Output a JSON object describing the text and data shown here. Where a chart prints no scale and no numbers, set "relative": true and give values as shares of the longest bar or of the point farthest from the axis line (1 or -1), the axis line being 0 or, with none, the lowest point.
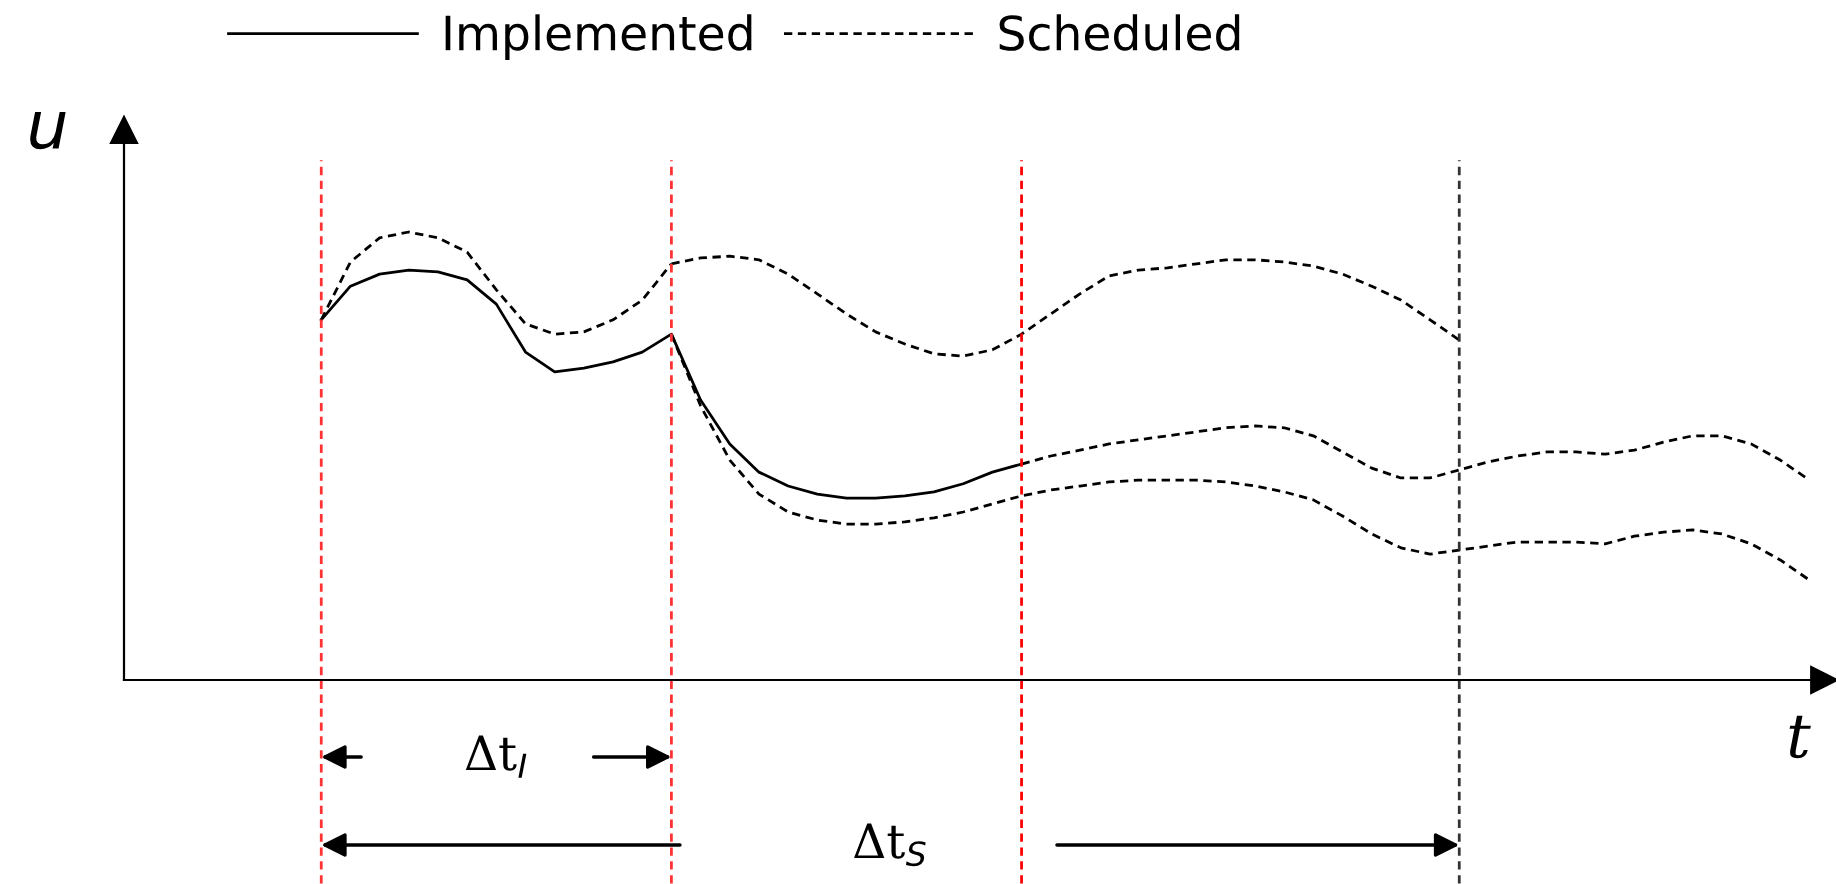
{
  "chart_data": {
    "type": "line",
    "relative": true,
    "xlabel": "t",
    "ylabel": "u",
    "legend": "top",
    "categories": [
      null,
      null,
      null,
      null,
      null,
      null,
      null,
      null,
      null,
      null,
      null,
      null,
      null,
      null,
      null,
      null,
      null,
      null,
      null,
      null,
      null,
      null,
      null,
      null,
      null,
      null,
      null,
      null,
      null,
      null,
      null,
      null,
      null,
      null,
      null,
      null,
      null,
      null,
      null,
      null,
      null,
      null,
      null,
      null,
      null,
      null,
      null,
      null,
      null,
      null,
      null,
      null
    ],
    "series": [
      {
        "name": "Implemented",
        "color": "#000000",
        "line_style": "solid",
        "values": [
          0.804,
          0.879,
          0.906,
          0.915,
          0.911,
          0.893,
          0.839,
          0.732,
          0.688,
          0.696,
          0.71,
          0.732,
          0.772,
          0.625,
          0.527,
          0.464,
          0.433,
          0.415,
          0.406,
          0.406,
          0.411,
          0.42,
          0.438,
          0.464,
          0.482,
          null,
          null,
          null,
          null,
          null,
          null,
          null,
          null,
          null,
          null,
          null,
          null,
          null,
          null,
          null,
          null,
          null,
          null,
          null,
          null,
          null,
          null,
          null,
          null,
          null,
          null,
          null
        ]
      },
      {
        "name": "Scheduled",
        "color": "#000000",
        "line_style": "dashed",
        "values": [
          0.804,
          0.933,
          0.987,
          1,
          0.987,
          0.955,
          0.871,
          0.795,
          0.772,
          0.777,
          0.804,
          0.848,
          0.929,
          null,
          null,
          null,
          null,
          null,
          null,
          null,
          null,
          null,
          null,
          null,
          null,
          null,
          null,
          null,
          null,
          null,
          null,
          null,
          null,
          null,
          null,
          null,
          null,
          null,
          null,
          null,
          null,
          null,
          null,
          null,
          null,
          null,
          null,
          null,
          null,
          null,
          null,
          null
        ]
      },
      {
        "color": "#000000",
        "line_style": "dashed",
        "values": [
          null,
          null,
          null,
          null,
          null,
          null,
          null,
          null,
          null,
          null,
          null,
          null,
          0.929,
          0.942,
          0.946,
          0.938,
          0.906,
          0.862,
          0.817,
          0.777,
          0.75,
          0.728,
          0.723,
          0.737,
          0.772,
          0.817,
          0.862,
          0.902,
          0.915,
          0.92,
          0.929,
          0.938,
          0.938,
          0.933,
          0.924,
          0.906,
          0.879,
          0.848,
          0.804,
          0.759,
          null,
          null,
          null,
          null,
          null,
          null,
          null,
          null,
          null,
          null,
          null,
          null
        ]
      },
      {
        "color": "#000000",
        "line_style": "dashed",
        "values": [
          null,
          null,
          null,
          null,
          null,
          null,
          null,
          null,
          null,
          null,
          null,
          null,
          0.772,
          0.612,
          0.491,
          0.415,
          0.375,
          0.357,
          0.348,
          0.348,
          0.353,
          0.362,
          0.375,
          0.393,
          0.411,
          0.424,
          0.433,
          0.442,
          0.446,
          0.446,
          0.446,
          0.442,
          0.433,
          0.42,
          0.402,
          0.366,
          0.326,
          0.295,
          0.281,
          0.29,
          0.299,
          0.308,
          0.308,
          0.308,
          0.304,
          0.321,
          0.33,
          0.335,
          0.326,
          0.304,
          0.268,
          0.223
        ]
      },
      {
        "color": "#000000",
        "line_style": "dashed",
        "values": [
          null,
          null,
          null,
          null,
          null,
          null,
          null,
          null,
          null,
          null,
          null,
          null,
          null,
          null,
          null,
          null,
          null,
          null,
          null,
          null,
          null,
          null,
          null,
          null,
          0.482,
          0.5,
          0.513,
          0.527,
          0.536,
          0.545,
          0.554,
          0.563,
          0.567,
          0.563,
          0.545,
          0.509,
          0.473,
          0.451,
          0.451,
          0.469,
          0.487,
          0.5,
          0.509,
          0.509,
          0.504,
          0.513,
          0.531,
          0.545,
          0.545,
          0.527,
          0.491,
          0.446
        ]
      }
    ],
    "annotations": [
      "Δt$_{I}$",
      "Δt$_{S}$"
    ]
  }
}
